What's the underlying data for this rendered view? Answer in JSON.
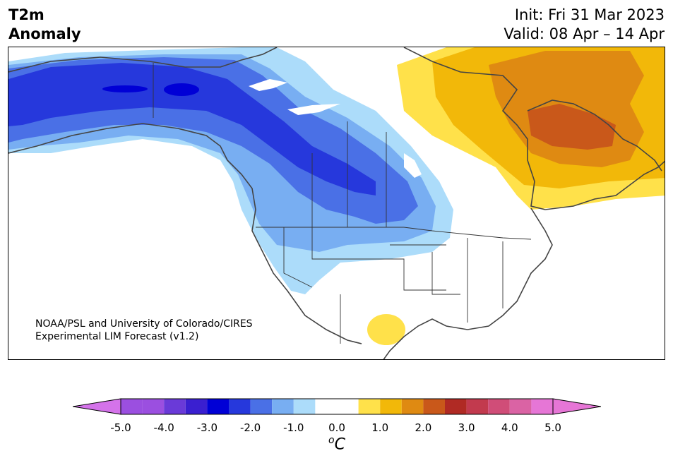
{
  "header": {
    "variable": "T2m",
    "field": "Anomaly",
    "init": "Init: Fri 31 Mar 2023",
    "valid": "Valid: 08 Apr – 14 Apr"
  },
  "credit": {
    "line1": "NOAA/PSL and University of Colorado/CIRES",
    "line2": "Experimental LIM Forecast (v1.2)"
  },
  "colorbar": {
    "unit_super": "o",
    "unit": "C",
    "min_extend_color": "#d473ea",
    "max_extend_color": "#e676d6",
    "bins": [
      {
        "lo": -5.0,
        "hi": -4.5,
        "color": "#9b4fe0"
      },
      {
        "lo": -4.5,
        "hi": -4.0,
        "color": "#9b4fe0"
      },
      {
        "lo": -4.0,
        "hi": -3.5,
        "color": "#6a3ad8"
      },
      {
        "lo": -3.5,
        "hi": -3.0,
        "color": "#3a1fd0"
      },
      {
        "lo": -3.0,
        "hi": -2.5,
        "color": "#0000d6"
      },
      {
        "lo": -2.5,
        "hi": -2.0,
        "color": "#2638dc"
      },
      {
        "lo": -2.0,
        "hi": -1.5,
        "color": "#4a70e6"
      },
      {
        "lo": -1.5,
        "hi": -1.0,
        "color": "#78aef2"
      },
      {
        "lo": -1.0,
        "hi": -0.5,
        "color": "#acdcfa"
      },
      {
        "lo": -0.5,
        "hi": 0.5,
        "color": "#ffffff"
      },
      {
        "lo": 0.5,
        "hi": 1.0,
        "color": "#ffe14a"
      },
      {
        "lo": 1.0,
        "hi": 1.5,
        "color": "#f2b809"
      },
      {
        "lo": 1.5,
        "hi": 2.0,
        "color": "#df8a12"
      },
      {
        "lo": 2.0,
        "hi": 2.5,
        "color": "#c9581a"
      },
      {
        "lo": 2.5,
        "hi": 3.0,
        "color": "#b02a24"
      },
      {
        "lo": 3.0,
        "hi": 3.5,
        "color": "#c23a4e"
      },
      {
        "lo": 3.5,
        "hi": 4.0,
        "color": "#d04d78"
      },
      {
        "lo": 4.0,
        "hi": 4.5,
        "color": "#da63a4"
      },
      {
        "lo": 4.5,
        "hi": 5.0,
        "color": "#e676d6"
      }
    ],
    "ticks": [
      "-5.0",
      "-4.0",
      "-3.0",
      "-2.0",
      "-1.0",
      "0.0",
      "1.0",
      "2.0",
      "3.0",
      "4.0",
      "5.0"
    ]
  },
  "legend_colors": {
    "blue_1": "#acdcfa",
    "blue_2": "#78aef2",
    "blue_3": "#4a70e6",
    "blue_4": "#2638dc",
    "blue_5": "#0000d6",
    "yellow_1": "#ffe14a",
    "orange_1": "#f2b809",
    "orange_2": "#df8a12",
    "orange_3": "#c9581a"
  }
}
